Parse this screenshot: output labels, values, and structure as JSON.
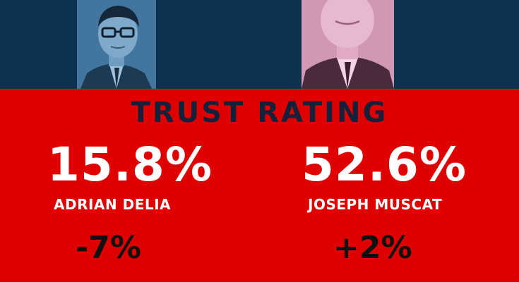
{
  "title": "TRUST RATING",
  "colors": {
    "top_band": "#0d3150",
    "bottom_band": "#df0000",
    "title_text": "#14213a",
    "figure_text": "#ffffff",
    "change_text": "#0f1010"
  },
  "candidates": [
    {
      "name": "ADRIAN DELIA",
      "trust": "15.8%",
      "change": "-7%",
      "photo_tint": "#3a6e96"
    },
    {
      "name": "JOSEPH MUSCAT",
      "trust": "52.6%",
      "change": "+2%",
      "photo_tint": "#d79ab8"
    }
  ]
}
